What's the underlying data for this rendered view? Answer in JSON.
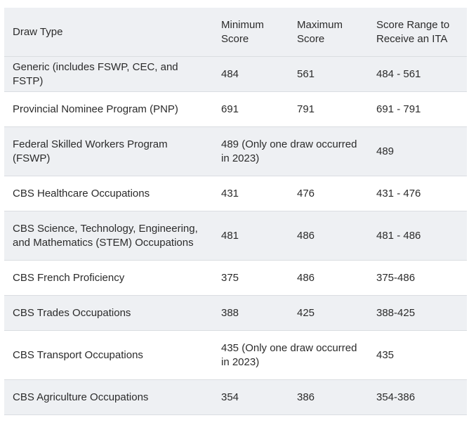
{
  "table": {
    "headers": [
      "Draw Type",
      "Minimum Score",
      "Maximum Score",
      "Score Range to Receive an ITA"
    ],
    "rows": [
      {
        "draw_type": "Generic (includes FSWP, CEC, and FSTP)",
        "min": "484",
        "max": "561",
        "range": "484 - 561"
      },
      {
        "draw_type": "Provincial Nominee Program (PNP)",
        "min": "691",
        "max": "791",
        "range": "691 - 791"
      },
      {
        "draw_type": "Federal Skilled Workers Program (FSWP)",
        "min_max_combined": "489 (Only one draw occurred in 2023)",
        "range": "489"
      },
      {
        "draw_type": "CBS Healthcare Occupations",
        "min": "431",
        "max": "476",
        "range": "431 - 476"
      },
      {
        "draw_type": "CBS Science, Technology, Engineering, and Mathematics (STEM) Occupations",
        "min": "481",
        "max": "486",
        "range": "481 - 486"
      },
      {
        "draw_type": "CBS French Proficiency",
        "min": "375",
        "max": "486",
        "range": "375-486"
      },
      {
        "draw_type": "CBS Trades Occupations",
        "min": "388",
        "max": "425",
        "range": "388-425"
      },
      {
        "draw_type": "CBS Transport Occupations",
        "min_max_combined": "435 (Only one draw occurred in 2023)",
        "range": "435"
      },
      {
        "draw_type": "CBS Agriculture Occupations",
        "min": "354",
        "max": "386",
        "range": "354-386"
      }
    ]
  }
}
